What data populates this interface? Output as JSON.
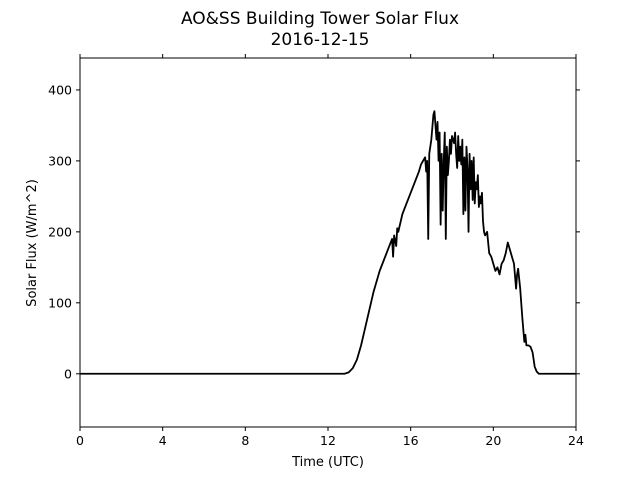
{
  "chart_data": {
    "type": "line",
    "title": "AO&SS Building Tower Solar Flux",
    "subtitle": "2016-12-15",
    "xlabel": "Time (UTC)",
    "ylabel": "Solar Flux (W/m^2)",
    "xlim": [
      0,
      24
    ],
    "ylim": [
      -75,
      445
    ],
    "x_ticks": [
      0,
      4,
      8,
      12,
      16,
      20,
      24
    ],
    "y_ticks": [
      0,
      100,
      200,
      300,
      400
    ],
    "grid": false,
    "legend": "none",
    "line_color": "#000000",
    "series": [
      {
        "x": [
          0,
          12.8,
          13.0,
          13.2,
          13.4,
          13.6,
          13.8,
          14.0,
          14.2,
          14.4,
          14.5,
          14.7,
          14.9,
          15.1,
          15.15,
          15.2,
          15.3,
          15.35,
          15.4,
          15.6,
          15.8,
          16.0,
          16.2,
          16.4,
          16.5,
          16.6,
          16.7,
          16.75,
          16.8,
          16.85,
          16.9,
          17.0,
          17.1,
          17.15,
          17.2,
          17.25,
          17.3,
          17.35,
          17.4,
          17.45,
          17.5,
          17.55,
          17.6,
          17.65,
          17.7,
          17.75,
          17.8,
          17.85,
          17.9,
          17.95,
          18.0,
          18.1,
          18.15,
          18.2,
          18.25,
          18.3,
          18.35,
          18.4,
          18.45,
          18.5,
          18.55,
          18.6,
          18.65,
          18.7,
          18.75,
          18.8,
          18.85,
          18.9,
          18.95,
          19.0,
          19.05,
          19.1,
          19.15,
          19.2,
          19.25,
          19.3,
          19.35,
          19.4,
          19.45,
          19.5,
          19.55,
          19.6,
          19.7,
          19.8,
          19.9,
          20.0,
          20.1,
          20.2,
          20.3,
          20.4,
          20.5,
          20.6,
          20.7,
          20.8,
          20.9,
          21.0,
          21.1,
          21.15,
          21.2,
          21.3,
          21.4,
          21.5,
          21.55,
          21.6,
          21.7,
          21.8,
          21.9,
          22.0,
          22.1,
          22.2,
          22.3,
          22.4,
          22.5,
          24.0
        ],
        "values": [
          0,
          0,
          2,
          8,
          20,
          40,
          65,
          90,
          115,
          135,
          145,
          160,
          175,
          190,
          165,
          195,
          180,
          205,
          200,
          225,
          240,
          255,
          270,
          285,
          295,
          300,
          305,
          285,
          300,
          190,
          310,
          330,
          365,
          370,
          350,
          330,
          355,
          300,
          340,
          210,
          310,
          230,
          300,
          340,
          190,
          320,
          280,
          300,
          330,
          310,
          335,
          325,
          340,
          310,
          290,
          335,
          300,
          320,
          295,
          330,
          225,
          305,
          230,
          320,
          290,
          200,
          310,
          260,
          300,
          245,
          305,
          240,
          270,
          260,
          280,
          235,
          250,
          240,
          255,
          215,
          200,
          195,
          200,
          170,
          165,
          155,
          145,
          150,
          140,
          155,
          160,
          170,
          185,
          175,
          165,
          155,
          120,
          140,
          148,
          120,
          80,
          45,
          55,
          40,
          40,
          38,
          30,
          10,
          3,
          0,
          0,
          0,
          0,
          0
        ]
      }
    ]
  }
}
